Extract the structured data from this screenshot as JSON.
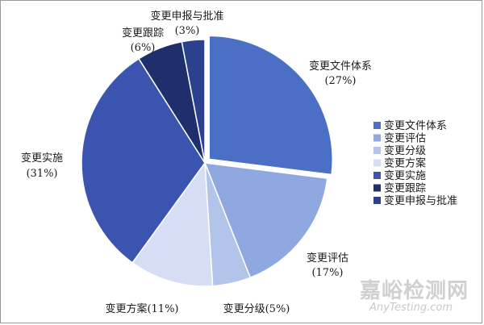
{
  "chart_data": {
    "type": "pie",
    "slices": [
      {
        "name": "变更文件体系",
        "value": 27,
        "pct_label": "(27%)",
        "color": "#4a6fc4",
        "explode": true
      },
      {
        "name": "变更评估",
        "value": 17,
        "pct_label": "(17%)",
        "color": "#8fa8df",
        "explode": false
      },
      {
        "name": "变更分级",
        "value": 5,
        "pct_label": "(5%)",
        "color": "#b3c4ea",
        "explode": false
      },
      {
        "name": "变更方案",
        "value": 11,
        "pct_label": "(11%)",
        "color": "#d5def4",
        "explode": false
      },
      {
        "name": "变更实施",
        "value": 31,
        "pct_label": "(31%)",
        "color": "#3a54b0",
        "explode": false
      },
      {
        "name": "变更跟踪",
        "value": 6,
        "pct_label": "(6%)",
        "color": "#1f2f6e",
        "explode": false
      },
      {
        "name": "变更申报与批准",
        "value": 3,
        "pct_label": "(3%)",
        "color": "#2b4190",
        "explode": false
      }
    ],
    "legend_position": "right",
    "start_angle_deg": 0,
    "direction": "clockwise"
  },
  "watermark": {
    "main": "嘉峪检测网",
    "sub": "AnyTesting.com"
  }
}
